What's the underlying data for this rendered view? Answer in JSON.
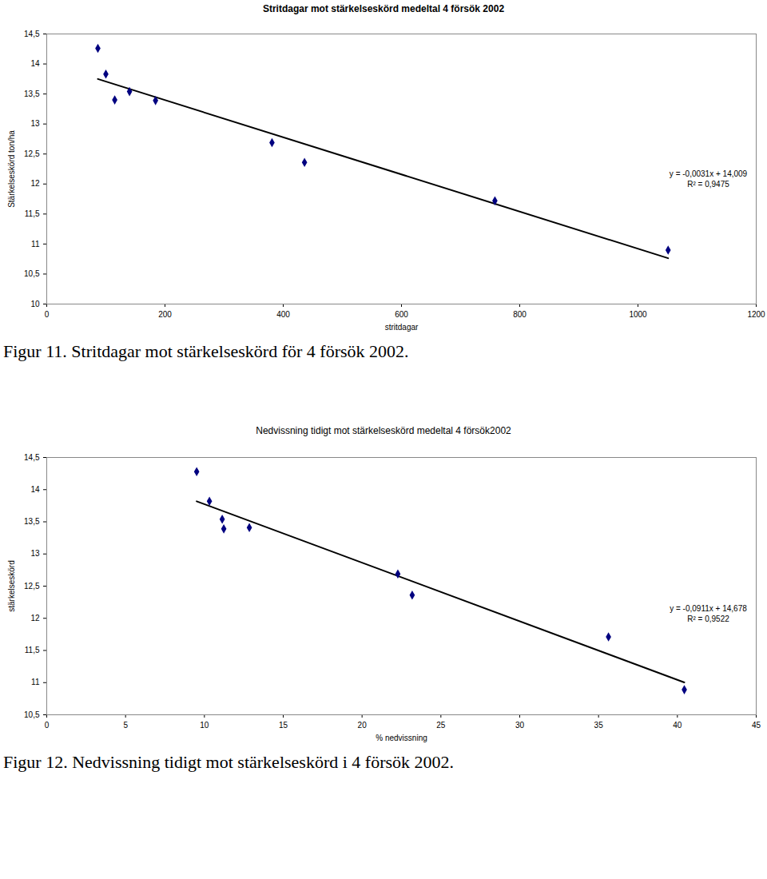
{
  "chart_data": [
    {
      "type": "scatter",
      "title": "Stritdagar mot stärkelseskörd medeltal 4 försök 2002",
      "caption": "Figur 11. Stritdagar mot stärkelseskörd för 4 försök 2002.",
      "x_label": "stritdagar",
      "y_label": "Stärkelseskörd ton/ha",
      "x": [
        86.5,
        100,
        115,
        140,
        184,
        381,
        436,
        758,
        1051
      ],
      "values": [
        14.26,
        13.83,
        13.4,
        13.54,
        13.39,
        12.69,
        12.36,
        11.72,
        10.9
      ],
      "color": "#000080",
      "marker": "diamond",
      "annotations": [
        "y = -0,0031x + 14,009",
        "R² = 0,9475"
      ],
      "xlim": [
        0,
        1200
      ],
      "xticks": [
        0,
        200,
        400,
        600,
        800,
        1000,
        1200
      ],
      "ylim": [
        10,
        14.5
      ],
      "yticks": [
        10,
        {
          "value": 10.5,
          "label": "10,5"
        },
        11,
        {
          "value": 11.5,
          "label": "11,5"
        },
        12,
        {
          "value": 12.5,
          "label": "12,5"
        },
        13,
        {
          "value": 13.5,
          "label": "13,5"
        },
        14,
        {
          "value": 14.5,
          "label": "14,5"
        }
      ],
      "grid": false
    },
    {
      "type": "scatter",
      "title": "Nedvissning tidigt mot stärkelseskörd medeltal 4 försök2002",
      "caption": "Figur 12. Nedvissning tidigt mot stärkelseskörd i 4 försök 2002.",
      "x_label": "% nedvissning",
      "y_label": "stärkelseskörd",
      "x": [
        9.51,
        10.32,
        11.13,
        11.23,
        12.85,
        22.27,
        23.18,
        35.63,
        40.44
      ],
      "values": [
        14.28,
        13.82,
        13.54,
        13.39,
        13.41,
        12.69,
        12.36,
        11.71,
        10.89
      ],
      "color": "#000080",
      "marker": "diamond",
      "annotations": [
        "y = -0,0911x + 14,678",
        "R² = 0,9522"
      ],
      "xlim": [
        0,
        45
      ],
      "xticks": [
        0,
        5,
        10,
        15,
        20,
        25,
        30,
        35,
        40,
        45
      ],
      "ylim": [
        10.5,
        14.5
      ],
      "yticks": [
        {
          "value": 10.5,
          "label": "10,5"
        },
        11,
        {
          "value": 11.5,
          "label": "11,5"
        },
        12,
        {
          "value": 12.5,
          "label": "12,5"
        },
        13,
        {
          "value": 13.5,
          "label": "13,5"
        },
        14,
        {
          "value": 14.5,
          "label": "14,5"
        }
      ],
      "grid": false
    }
  ]
}
